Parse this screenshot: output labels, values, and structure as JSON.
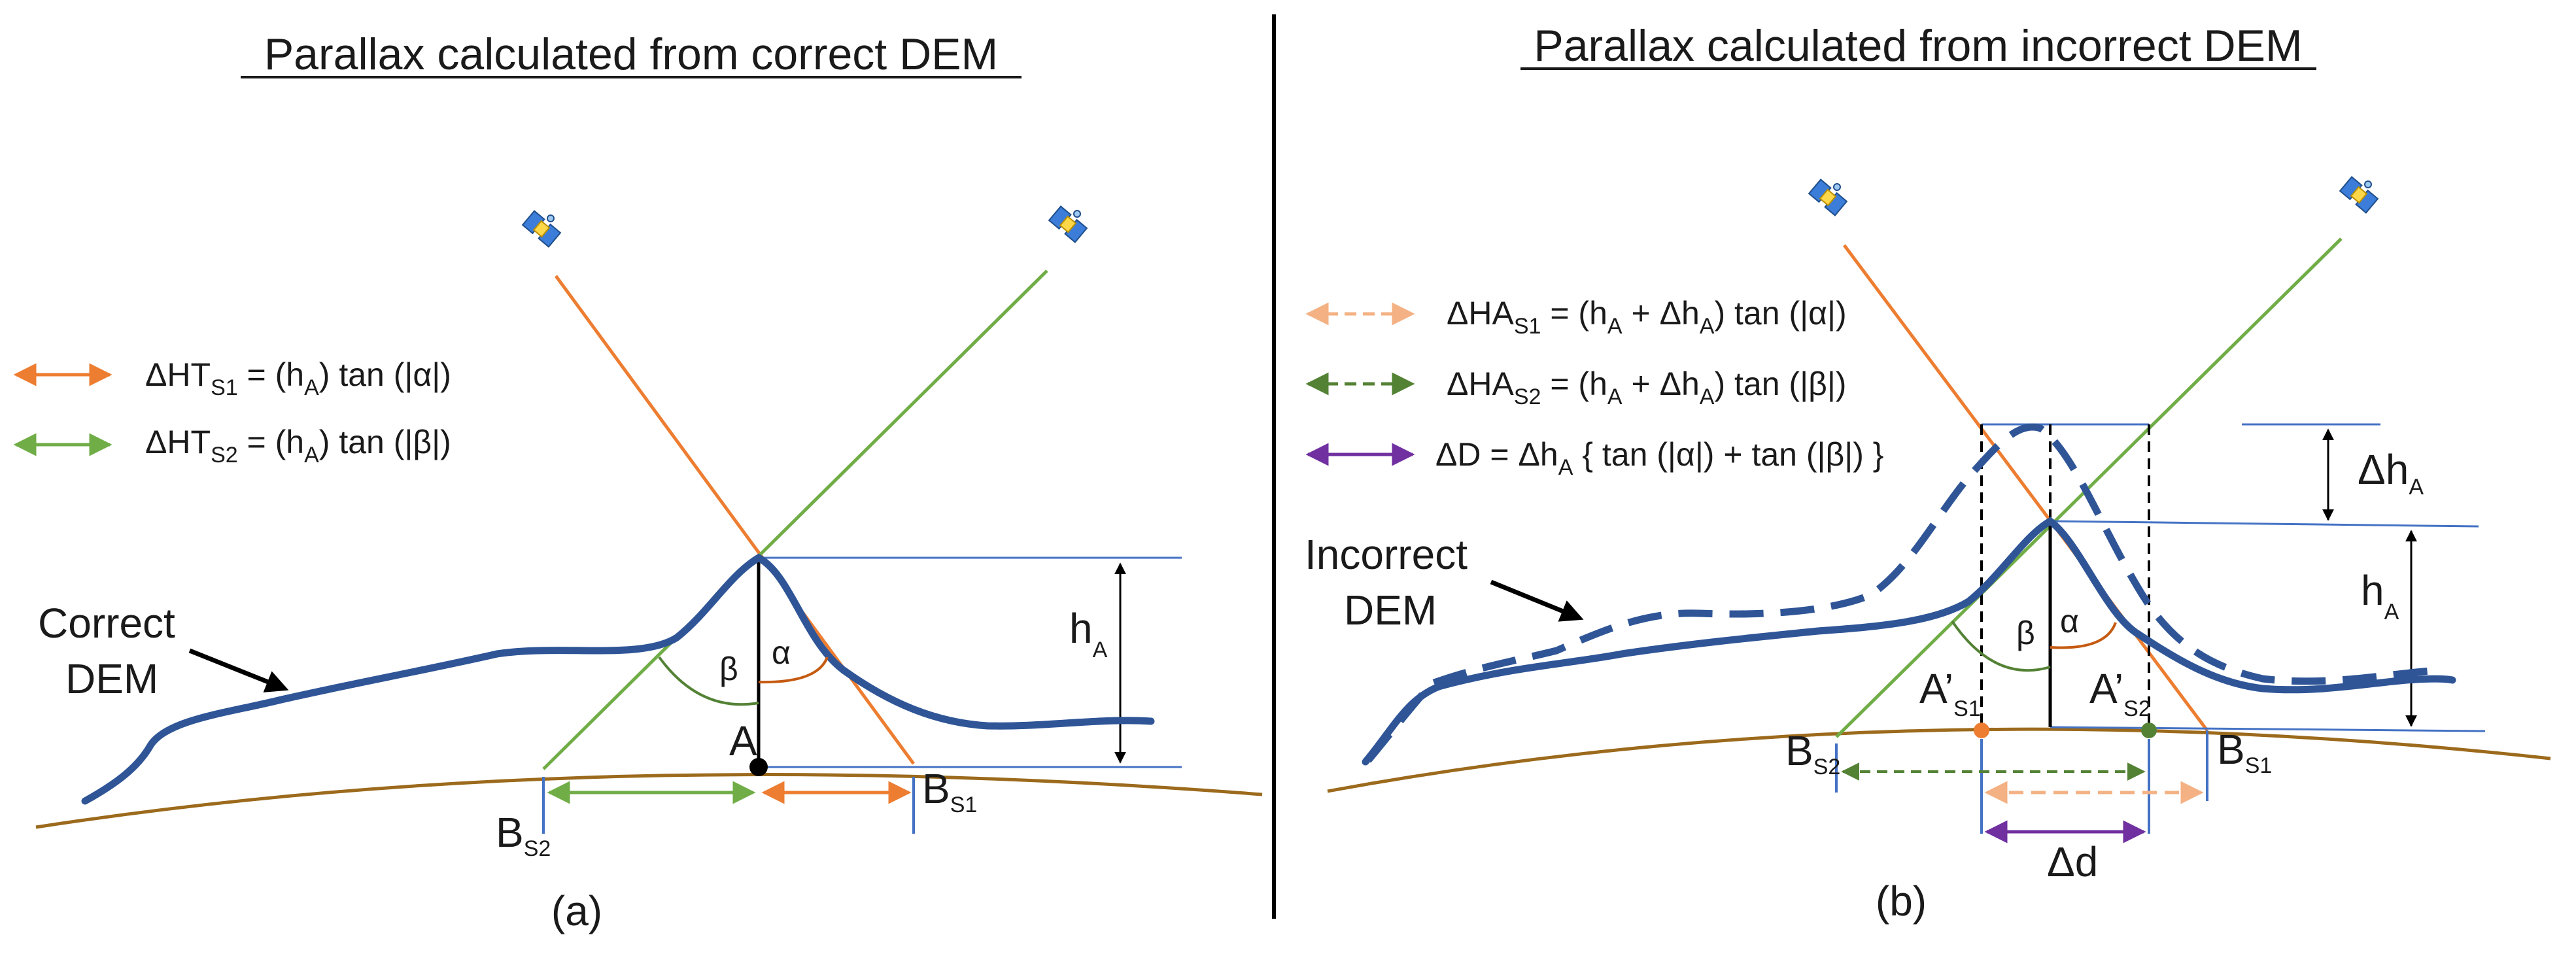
{
  "panels": {
    "a": {
      "title": "Parallax calculated from correct DEM",
      "caption": "(a)",
      "dem_label_line1": "Correct",
      "dem_label_line2": "DEM",
      "legend": [
        {
          "name": "orange",
          "color": "#ED7D31",
          "style": "solid",
          "text": "ΔHT",
          "sub": "S1",
          "rest": " = (h",
          "sub2": "A",
          "rest2": ") tan (|α|)"
        },
        {
          "name": "green",
          "color": "#70AD47",
          "style": "solid",
          "text": "ΔHT",
          "sub": "S2",
          "rest": " = (h",
          "sub2": "A",
          "rest2": ") tan (|β|)"
        }
      ],
      "labels": {
        "beta": "β",
        "alpha": "α",
        "point_a": "A",
        "height": "h",
        "height_sub": "A",
        "bs2": "B",
        "bs2_sub": "S2",
        "bs1": "B",
        "bs1_sub": "S1"
      }
    },
    "b": {
      "title": "Parallax calculated from incorrect DEM",
      "caption": "(b)",
      "dem_label_line1": "Incorrect",
      "dem_label_line2": "DEM",
      "legend": [
        {
          "name": "light-orange",
          "color": "#F4B183",
          "style": "dashed",
          "text": "ΔHA",
          "sub": "S1",
          "rest": " = (h",
          "sub2": "A",
          "rest3": " + Δh",
          "sub3": "A",
          "rest2": ") tan (|α|)"
        },
        {
          "name": "dark-green",
          "color": "#548235",
          "style": "dashed",
          "text": "ΔHA",
          "sub": "S2",
          "rest": " = (h",
          "sub2": "A",
          "rest3": " + Δh",
          "sub3": "A",
          "rest2": ") tan (|β|)"
        },
        {
          "name": "purple",
          "color": "#7030A0",
          "style": "solid",
          "text": "ΔD = Δh",
          "sub": "A",
          "rest": " { tan (|α|) + tan (|β|) }",
          "sub2": "",
          "rest2": ""
        }
      ],
      "labels": {
        "beta": "β",
        "alpha": "α",
        "delta_h": "Δh",
        "delta_h_sub": "A",
        "height": "h",
        "height_sub": "A",
        "a_prime_s1": "A’",
        "a_prime_s1_sub": "S1",
        "a_prime_s2": "A’",
        "a_prime_s2_sub": "S2",
        "bs2": "B",
        "bs2_sub": "S2",
        "bs1": "B",
        "bs1_sub": "S1",
        "delta_d": "Δd"
      }
    }
  },
  "colors": {
    "dem": "#2F5597",
    "ground": "#9C6A1C",
    "orange": "#ED7D31",
    "green": "#70AD47",
    "light_orange": "#F4B183",
    "dark_green": "#548235",
    "purple": "#7030A0",
    "blue_ref": "#4472C4",
    "black": "#000000"
  }
}
